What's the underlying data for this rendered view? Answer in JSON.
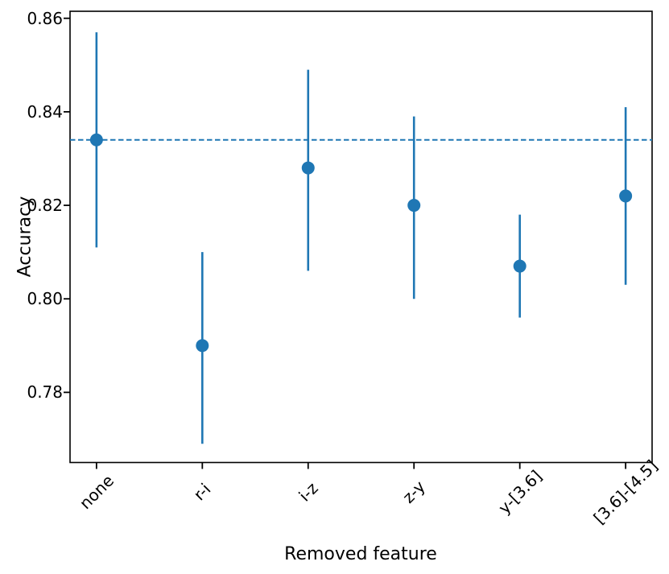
{
  "chart_data": {
    "type": "scatter",
    "subtype": "points-with-errorbars",
    "title": "",
    "xlabel": "Removed feature",
    "ylabel": "Accuracy",
    "categories": [
      "none",
      "r-i",
      "i-z",
      "z-y",
      "y-[3.6]",
      "[3.6]-[4.5]"
    ],
    "series": [
      {
        "name": "accuracy",
        "values": [
          0.834,
          0.79,
          0.828,
          0.82,
          0.807,
          0.822
        ],
        "err_low": [
          0.811,
          0.769,
          0.806,
          0.8,
          0.796,
          0.803
        ],
        "err_high": [
          0.857,
          0.81,
          0.849,
          0.839,
          0.818,
          0.841
        ]
      }
    ],
    "baseline": {
      "value": 0.834,
      "style": "dashed",
      "description": "horizontal dashed reference line at accuracy of 'none'"
    },
    "yticks": [
      0.78,
      0.8,
      0.82,
      0.84,
      0.86
    ],
    "ytick_labels": [
      "0.78",
      "0.80",
      "0.82",
      "0.84",
      "0.86"
    ],
    "ylim": [
      0.765,
      0.8615
    ],
    "grid": false,
    "legend": "none",
    "colors": {
      "marker": "#1f77b4",
      "errorbar": "#1f77b4",
      "baseline": "#1f77b4",
      "axis": "#000000",
      "text": "#000000",
      "background": "#ffffff"
    }
  }
}
